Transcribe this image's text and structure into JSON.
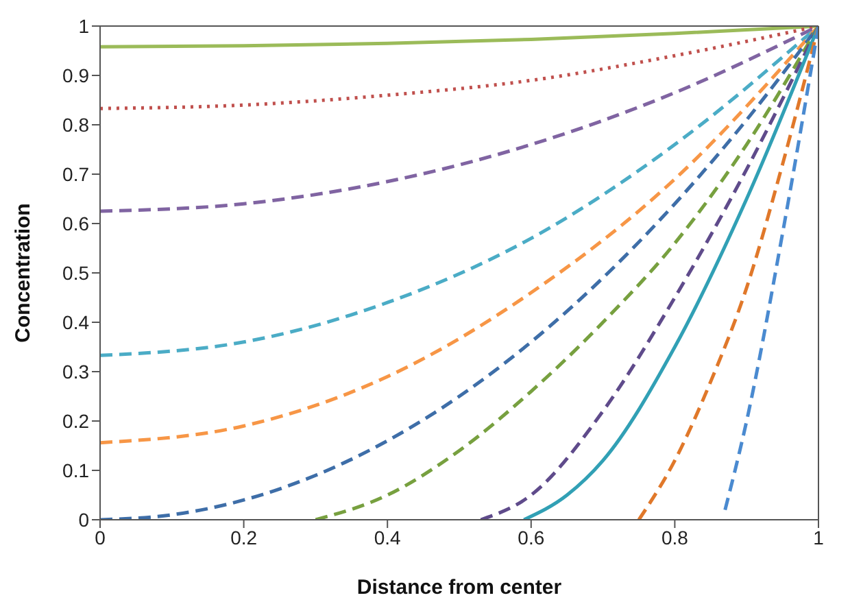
{
  "chart_data": {
    "type": "line",
    "xlabel": "Distance from center",
    "ylabel": "Concentration",
    "xlim": [
      0,
      1
    ],
    "ylim": [
      0,
      1
    ],
    "xticks": [
      0,
      0.2,
      0.4,
      0.6,
      0.8,
      1
    ],
    "yticks": [
      0,
      0.1,
      0.2,
      0.3,
      0.4,
      0.5,
      0.6,
      0.7,
      0.8,
      0.9,
      1
    ],
    "marker": "none",
    "series": [
      {
        "color": "#9bbb59",
        "line_style": "solid",
        "x": [
          0,
          0.2,
          0.4,
          0.6,
          0.8,
          1
        ],
        "values": [
          0.958,
          0.96,
          0.965,
          0.973,
          0.985,
          1
        ]
      },
      {
        "color": "#c0504d",
        "line_style": "dotted",
        "x": [
          0,
          0.2,
          0.4,
          0.6,
          0.8,
          1
        ],
        "values": [
          0.833,
          0.84,
          0.86,
          0.89,
          0.94,
          1
        ]
      },
      {
        "color": "#8064a2",
        "line_style": "dashed",
        "x": [
          0,
          0.2,
          0.4,
          0.6,
          0.8,
          1
        ],
        "values": [
          0.625,
          0.64,
          0.685,
          0.76,
          0.865,
          1
        ]
      },
      {
        "color": "#4bacc6",
        "line_style": "dashed",
        "x": [
          0,
          0.2,
          0.4,
          0.6,
          0.8,
          1
        ],
        "values": [
          0.333,
          0.36,
          0.44,
          0.57,
          0.76,
          1
        ]
      },
      {
        "color": "#f79646",
        "line_style": "dashed",
        "x": [
          0,
          0.2,
          0.4,
          0.6,
          0.8,
          1
        ],
        "values": [
          0.156,
          0.19,
          0.29,
          0.46,
          0.69,
          1
        ]
      },
      {
        "color": "#3e6ea8",
        "line_style": "dashed",
        "x": [
          0,
          0.1,
          0.2,
          0.3,
          0.4,
          0.5,
          0.6,
          0.7,
          0.8,
          0.9,
          1
        ],
        "values": [
          0,
          0.01,
          0.04,
          0.09,
          0.16,
          0.25,
          0.36,
          0.49,
          0.64,
          0.81,
          1
        ]
      },
      {
        "color": "#77a03f",
        "line_style": "dashed",
        "x": [
          0.3,
          0.4,
          0.5,
          0.6,
          0.7,
          0.8,
          0.9,
          1
        ],
        "values": [
          0,
          0.05,
          0.14,
          0.26,
          0.4,
          0.56,
          0.76,
          1
        ]
      },
      {
        "color": "#5f4b8b",
        "line_style": "dashed",
        "x": [
          0.53,
          0.6,
          0.7,
          0.8,
          0.9,
          1
        ],
        "values": [
          0,
          0.05,
          0.22,
          0.45,
          0.71,
          1
        ]
      },
      {
        "color": "#31a0b5",
        "line_style": "solid",
        "x": [
          0.59,
          0.65,
          0.7,
          0.8,
          0.9,
          1
        ],
        "values": [
          0,
          0.05,
          0.12,
          0.35,
          0.65,
          1
        ]
      },
      {
        "color": "#e0782a",
        "line_style": "dashed",
        "x": [
          0.75,
          0.8,
          0.85,
          0.9,
          0.95,
          1
        ],
        "values": [
          0,
          0.12,
          0.28,
          0.47,
          0.72,
          1
        ]
      },
      {
        "color": "#4a8ad0",
        "line_style": "dashed",
        "x": [
          0.87,
          0.9,
          0.95,
          1
        ],
        "values": [
          0.02,
          0.2,
          0.58,
          1
        ]
      }
    ]
  }
}
